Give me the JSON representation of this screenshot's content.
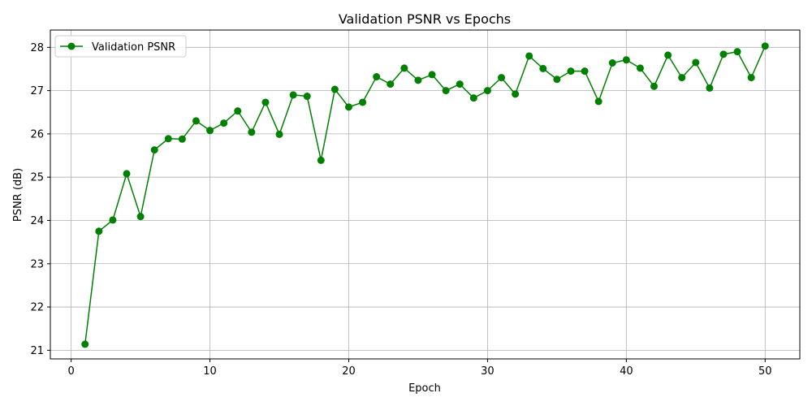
{
  "chart_data": {
    "type": "line",
    "title": "Validation PSNR vs Epochs",
    "xlabel": "Epoch",
    "ylabel": "PSNR (dB)",
    "xlim": [
      -1.5,
      52.5
    ],
    "ylim": [
      20.8,
      28.4
    ],
    "xticks": [
      0,
      10,
      20,
      30,
      40,
      50
    ],
    "yticks": [
      21,
      22,
      23,
      24,
      25,
      26,
      27,
      28
    ],
    "grid": true,
    "legend_position": "top-left",
    "series": [
      {
        "name": "Validation PSNR",
        "color": "#008000",
        "marker": "circle",
        "x": [
          1,
          2,
          3,
          4,
          5,
          6,
          7,
          8,
          9,
          10,
          11,
          12,
          13,
          14,
          15,
          16,
          17,
          18,
          19,
          20,
          21,
          22,
          23,
          24,
          25,
          26,
          27,
          28,
          29,
          30,
          31,
          32,
          33,
          34,
          35,
          36,
          37,
          38,
          39,
          40,
          41,
          42,
          43,
          44,
          45,
          46,
          47,
          48,
          49,
          50
        ],
        "y": [
          21.14,
          23.75,
          24.01,
          25.08,
          24.09,
          25.63,
          25.89,
          25.88,
          26.3,
          26.08,
          26.25,
          26.53,
          26.04,
          26.73,
          25.99,
          26.9,
          26.87,
          25.39,
          27.03,
          26.62,
          26.73,
          27.32,
          27.15,
          27.52,
          27.24,
          27.37,
          27.0,
          27.15,
          26.83,
          27.0,
          27.3,
          26.92,
          27.8,
          27.51,
          27.26,
          27.45,
          27.45,
          26.75,
          27.64,
          27.71,
          27.52,
          27.1,
          27.82,
          27.3,
          27.65,
          27.06,
          27.84,
          27.9,
          27.3,
          28.03
        ]
      }
    ]
  }
}
